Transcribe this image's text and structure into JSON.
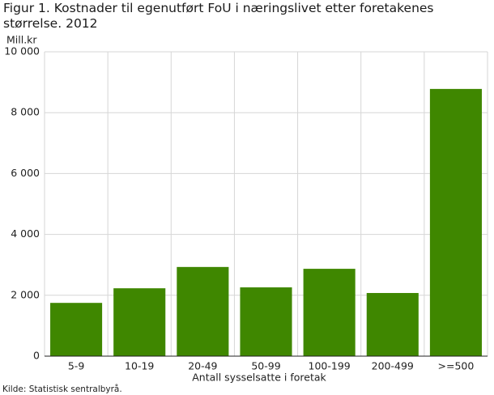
{
  "chart_data": {
    "type": "bar",
    "title": "Figur 1. Kostnader til egenutført FoU i næringslivet etter foretakenes størrelse. 2012",
    "y_label": "Mill.kr",
    "x_label": "Antall sysselsatte i foretak",
    "source": "Kilde: Statistisk sentralbyrå.",
    "categories": [
      "5-9",
      "10-19",
      "20-49",
      "50-99",
      "100-199",
      "200-499",
      ">=500"
    ],
    "values": [
      1750,
      2230,
      2930,
      2260,
      2870,
      2075,
      8780
    ],
    "color": "#3f8700",
    "ylim": [
      0,
      10000
    ],
    "yticks": [
      0,
      {
        "value": 2000,
        "label": "2 000"
      },
      {
        "value": 4000,
        "label": "4 000"
      },
      {
        "value": 6000,
        "label": "6 000"
      },
      {
        "value": 8000,
        "label": "8 000"
      },
      {
        "value": 10000,
        "label": "10 000"
      }
    ],
    "grid": true
  }
}
